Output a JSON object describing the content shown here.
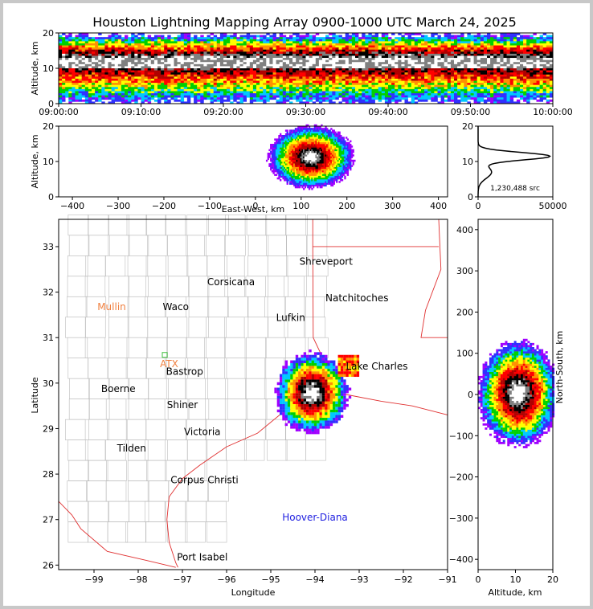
{
  "title": "Houston Lightning Mapping Array 0900-1000 UTC March 24, 2025",
  "chart_data": [
    {
      "id": "time_altitude",
      "type": "heatmap",
      "ylabel": "Altitude, km",
      "xlabel": "",
      "ylim": [
        0,
        20
      ],
      "xticks": [
        "09:00:00",
        "09:10:00",
        "09:20:00",
        "09:30:00",
        "09:40:00",
        "09:50:00",
        "10:00:00"
      ],
      "yticks": [
        "0",
        "10",
        "20"
      ],
      "core_altitude_km": [
        8,
        13
      ]
    },
    {
      "id": "eastwest_altitude",
      "type": "heatmap",
      "xlabel": "East-West, km",
      "ylabel": "Altitude, km",
      "xlim": [
        -430,
        420
      ],
      "ylim": [
        0,
        20
      ],
      "xticks": [
        "−400",
        "−300",
        "−200",
        "−100",
        "0",
        "100",
        "200",
        "300",
        "400"
      ],
      "yticks": [
        "0",
        "10",
        "20"
      ],
      "core": {
        "x_km": 120,
        "alt_km": 11
      }
    },
    {
      "id": "altitude_histogram",
      "type": "line",
      "xlim": [
        0,
        50000
      ],
      "ylim": [
        0,
        20
      ],
      "xticks": [
        "0",
        "50000"
      ],
      "yticks": [
        "0",
        "10",
        "20"
      ],
      "annotation": "1,230,488 src",
      "peak": {
        "altitude_km": 11.5,
        "count": 48000
      }
    },
    {
      "id": "plan_view",
      "type": "heatmap",
      "xlabel": "Longitude",
      "ylabel": "Latitude",
      "xlim": [
        -99.8,
        -91
      ],
      "ylim": [
        25.9,
        33.6
      ],
      "xticks": [
        "−99",
        "−98",
        "−97",
        "−96",
        "−95",
        "−94",
        "−93",
        "−92",
        "−91"
      ],
      "yticks": [
        "26",
        "27",
        "28",
        "29",
        "30",
        "31",
        "32",
        "33"
      ],
      "cities": [
        {
          "name": "Shreveport",
          "lon": -93.75,
          "lat": 32.6,
          "color": "#000000"
        },
        {
          "name": "Corsicana",
          "lon": -95.9,
          "lat": 32.15,
          "color": "#000000"
        },
        {
          "name": "Natchitoches",
          "lon": -93.05,
          "lat": 31.8,
          "color": "#000000"
        },
        {
          "name": "Mullin",
          "lon": -98.6,
          "lat": 31.6,
          "color": "#f08040"
        },
        {
          "name": "Waco",
          "lon": -97.15,
          "lat": 31.6,
          "color": "#000000"
        },
        {
          "name": "Lufkin",
          "lon": -94.55,
          "lat": 31.37,
          "color": "#000000"
        },
        {
          "name": "ATX",
          "lon": -97.3,
          "lat": 30.35,
          "color": "#f08040"
        },
        {
          "name": "Bastrop",
          "lon": -96.95,
          "lat": 30.18,
          "color": "#000000"
        },
        {
          "name": "Lake Charles",
          "lon": -92.6,
          "lat": 30.3,
          "color": "#000000"
        },
        {
          "name": "Boerne",
          "lon": -98.45,
          "lat": 29.8,
          "color": "#000000"
        },
        {
          "name": "Shiner",
          "lon": -97.0,
          "lat": 29.45,
          "color": "#000000"
        },
        {
          "name": "Victoria",
          "lon": -96.55,
          "lat": 28.86,
          "color": "#000000"
        },
        {
          "name": "Tilden",
          "lon": -98.15,
          "lat": 28.5,
          "color": "#000000"
        },
        {
          "name": "Corpus Christi",
          "lon": -96.5,
          "lat": 27.8,
          "color": "#000000"
        },
        {
          "name": "Hoover-Diana",
          "lon": -94.0,
          "lat": 26.98,
          "color": "#2020e0"
        },
        {
          "name": "Port Isabel",
          "lon": -96.55,
          "lat": 26.1,
          "color": "#000000"
        }
      ]
    },
    {
      "id": "altitude_northsouth",
      "type": "heatmap",
      "xlabel": "Altitude, km",
      "ylabel": "North-South, km",
      "xlim": [
        0,
        20
      ],
      "ylim": [
        -425,
        425
      ],
      "xticks": [
        "0",
        "10",
        "20"
      ],
      "yticks": [
        "−400",
        "−300",
        "−200",
        "−100",
        "0",
        "100",
        "200",
        "300",
        "400"
      ]
    }
  ],
  "palette": [
    "#a000ff",
    "#3030ff",
    "#00c8ff",
    "#00d000",
    "#ffff00",
    "#ff9000",
    "#ff0000",
    "#b00000",
    "#000000",
    "#808080",
    "#ffffff"
  ]
}
